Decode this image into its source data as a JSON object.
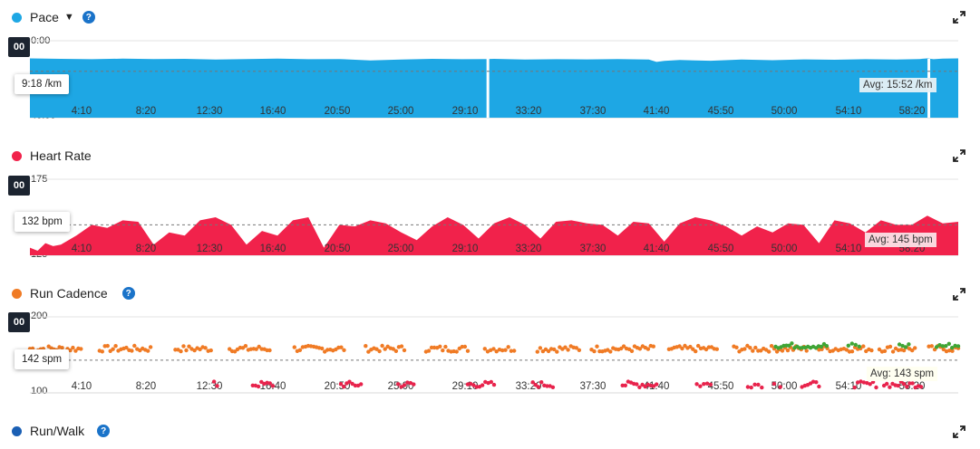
{
  "chart_data": [
    {
      "type": "area",
      "title": "Pace",
      "color": "#1ea7e4",
      "ylabel_top": "0:00",
      "ylabel_bottom": "40:00",
      "ylim": [
        40,
        0
      ],
      "x_ticks": [
        "4:10",
        "8:20",
        "12:30",
        "16:40",
        "20:50",
        "25:00",
        "29:10",
        "33:20",
        "37:30",
        "41:40",
        "45:50",
        "50:00",
        "54:10",
        "58:20"
      ],
      "hover_value": "9:18 /km",
      "avg_label": "Avg: 15:52 /km",
      "avg_value": 15.87,
      "series": [
        {
          "x": [
            0,
            2,
            4,
            6,
            8,
            10,
            12,
            14,
            16,
            18,
            20,
            22,
            24,
            26,
            28,
            29.5,
            30,
            32,
            34,
            36,
            38,
            40,
            40.5,
            41,
            42,
            44,
            46,
            48,
            50,
            52,
            54,
            56,
            57.5,
            58,
            58.4,
            59,
            60
          ],
          "values": [
            9.2,
            9.4,
            9.6,
            9.3,
            9.5,
            9.4,
            9.8,
            9.5,
            9.3,
            9.6,
            9.5,
            10.2,
            9.8,
            9.4,
            9.6,
            9.5,
            9.4,
            9.8,
            9.6,
            9.7,
            9.5,
            9.8,
            11.0,
            10.5,
            10.0,
            10.4,
            9.8,
            10.1,
            9.7,
            9.9,
            9.6,
            9.8,
            9.5,
            9.2,
            9.6,
            9.3,
            9.2
          ]
        }
      ],
      "gaps": [
        29.6,
        58.1
      ]
    },
    {
      "type": "area",
      "title": "Heart Rate",
      "color": "#f1224b",
      "ylabel_top": "175",
      "ylabel_bottom": "125",
      "ylim": [
        125,
        175
      ],
      "x_ticks": [
        "4:10",
        "8:20",
        "12:30",
        "16:40",
        "20:50",
        "25:00",
        "29:10",
        "33:20",
        "37:30",
        "41:40",
        "45:50",
        "50:00",
        "54:10",
        "58:20"
      ],
      "hover_value": "132 bpm",
      "avg_label": "Avg: 145 bpm",
      "avg_value": 145,
      "series": [
        {
          "x": [
            0,
            0.5,
            1,
            1.5,
            2,
            3,
            4,
            5,
            6,
            7,
            8,
            9,
            10,
            11,
            12,
            13,
            14,
            15,
            16,
            17,
            18,
            19,
            20,
            21,
            22,
            23,
            24,
            25,
            26,
            27,
            28,
            29,
            30,
            31,
            32,
            33,
            34,
            35,
            36,
            37,
            38,
            39,
            40,
            41,
            42,
            43,
            44,
            45,
            46,
            47,
            48,
            49,
            50,
            51,
            52,
            53,
            54,
            55,
            56,
            57,
            58,
            59,
            60
          ],
          "values": [
            130,
            128,
            133,
            131,
            132,
            138,
            145,
            143,
            148,
            147,
            132,
            140,
            138,
            148,
            150,
            145,
            132,
            141,
            138,
            148,
            150,
            130,
            145,
            144,
            148,
            146,
            140,
            135,
            144,
            150,
            145,
            136,
            146,
            150,
            145,
            136,
            147,
            148,
            146,
            145,
            138,
            147,
            146,
            134,
            146,
            150,
            148,
            144,
            138,
            144,
            140,
            146,
            145,
            133,
            148,
            146,
            140,
            148,
            145,
            145,
            151,
            146,
            147
          ]
        }
      ]
    },
    {
      "type": "scatter",
      "title": "Run Cadence",
      "ylabel_top": "200",
      "ylabel_bottom": "100",
      "ylim": [
        100,
        200
      ],
      "x_ticks": [
        "4:10",
        "8:20",
        "12:30",
        "16:40",
        "20:50",
        "25:00",
        "29:10",
        "33:20",
        "37:30",
        "41:40",
        "45:50",
        "50:00",
        "54:10",
        "58:20"
      ],
      "hover_value": "142 spm",
      "avg_label": "Avg: 143 spm",
      "avg_value": 143,
      "colors": {
        "run": "#f07b25",
        "slow": "#e8234c",
        "fast": "#3fa535"
      },
      "run_segments": [
        [
          0,
          3.3
        ],
        [
          4.5,
          7.8
        ],
        [
          9.4,
          11.7
        ],
        [
          12.9,
          15.5
        ],
        [
          17.1,
          20.3
        ],
        [
          21.7,
          24.2
        ],
        [
          25.6,
          28.3
        ],
        [
          29.4,
          31.3
        ],
        [
          32.8,
          35.5
        ],
        [
          36.3,
          40.3
        ],
        [
          41.3,
          44.4
        ],
        [
          45.5,
          50.2
        ],
        [
          51.0,
          54.4
        ],
        [
          54.9,
          57.2
        ],
        [
          58.1,
          60.0
        ]
      ],
      "slow_segments": [
        [
          11.9,
          12.1
        ],
        [
          14.4,
          15.7
        ],
        [
          20.1,
          21.4
        ],
        [
          23.8,
          24.8
        ],
        [
          28.3,
          30.0
        ],
        [
          32.5,
          33.8
        ],
        [
          38.3,
          40.5
        ],
        [
          43.1,
          44.0
        ],
        [
          46.4,
          47.3
        ],
        [
          48.1,
          48.5
        ],
        [
          49.9,
          51.0
        ],
        [
          53.3,
          54.7
        ],
        [
          55.2,
          57.6
        ]
      ],
      "fast_segments": [
        [
          48.2,
          51.5
        ],
        [
          52.9,
          53.6
        ],
        [
          56.2,
          56.8
        ],
        [
          58.6,
          60.0
        ]
      ]
    }
  ],
  "sections": {
    "pace_title": "Pace",
    "hr_title": "Heart Rate",
    "cadence_title": "Run Cadence",
    "runwalk_title": "Run/Walk",
    "black_tab": "00",
    "help_glyph": "?",
    "caret_glyph": "▼"
  }
}
